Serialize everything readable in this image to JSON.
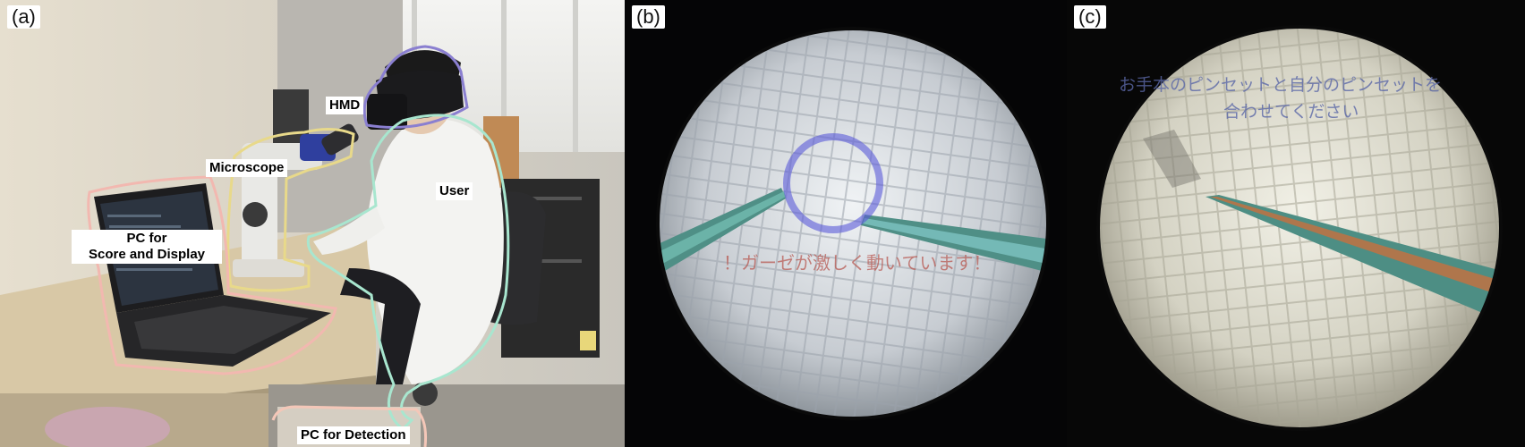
{
  "panels": [
    {
      "label": "(a)",
      "annotations": {
        "hmd": "HMD",
        "microscope": "Microscope",
        "user": "User",
        "pc_score_line1": "PC for",
        "pc_score_line2": "Score and Display",
        "pc_detection": "PC for Detection"
      },
      "outline_colors": {
        "hmd": "#8a7fd0",
        "microscope": "#e8d98a",
        "user": "#a8e6cf",
        "pc_score": "#f2b8b0",
        "pc_detection": "#f4c7b8"
      }
    },
    {
      "label": "(b)",
      "overlay_text": "！ガーゼが激しく動いています！",
      "ring_color": "#5a5ad8"
    },
    {
      "label": "(c)",
      "overlay_text_line1": "お手本のピンセットと自分のピンセットを",
      "overlay_text_line2": "合わせてください"
    }
  ]
}
